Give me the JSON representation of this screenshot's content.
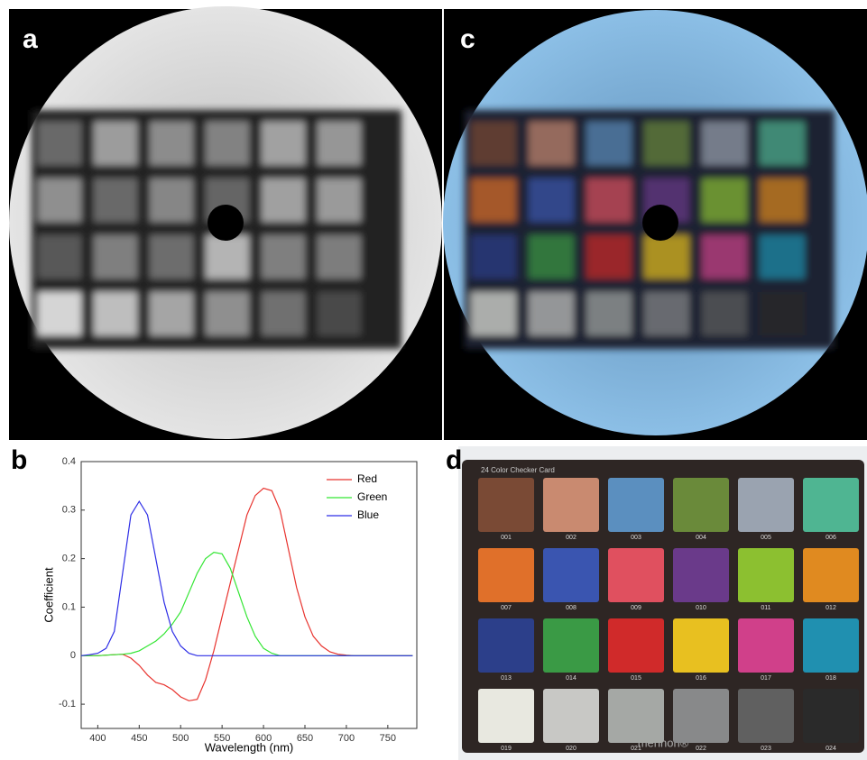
{
  "panels": {
    "a": "a",
    "b": "b",
    "c": "c",
    "d": "d"
  },
  "chart_data": {
    "type": "line",
    "xlabel": "Wavelength (nm)",
    "ylabel": "Coefficient",
    "x": [
      380,
      390,
      400,
      410,
      420,
      430,
      440,
      450,
      460,
      470,
      480,
      490,
      500,
      510,
      520,
      530,
      540,
      550,
      560,
      570,
      580,
      590,
      600,
      610,
      620,
      630,
      640,
      650,
      660,
      670,
      680,
      690,
      700,
      710,
      720,
      730,
      740,
      750,
      760,
      770,
      780
    ],
    "series": [
      {
        "name": "Red",
        "color": "#e8332e",
        "values": [
          0,
          0,
          0,
          0.001,
          0.002,
          0.003,
          -0.005,
          -0.02,
          -0.04,
          -0.055,
          -0.06,
          -0.07,
          -0.085,
          -0.093,
          -0.09,
          -0.05,
          0.01,
          0.08,
          0.15,
          0.22,
          0.29,
          0.33,
          0.345,
          0.34,
          0.3,
          0.22,
          0.14,
          0.08,
          0.04,
          0.02,
          0.008,
          0.003,
          0.001,
          0,
          0,
          0,
          0,
          0,
          0,
          0,
          0
        ]
      },
      {
        "name": "Green",
        "color": "#33e633",
        "values": [
          0,
          0,
          0,
          0.001,
          0.002,
          0.003,
          0.005,
          0.01,
          0.02,
          0.03,
          0.045,
          0.065,
          0.09,
          0.13,
          0.17,
          0.2,
          0.213,
          0.21,
          0.18,
          0.13,
          0.08,
          0.04,
          0.015,
          0.005,
          0,
          0,
          0,
          0,
          0,
          0,
          0,
          0,
          0,
          0,
          0,
          0,
          0,
          0,
          0,
          0,
          0
        ]
      },
      {
        "name": "Blue",
        "color": "#2e2ee6",
        "values": [
          0,
          0.002,
          0.005,
          0.015,
          0.05,
          0.17,
          0.29,
          0.318,
          0.29,
          0.2,
          0.11,
          0.05,
          0.02,
          0.005,
          0,
          0,
          0,
          0,
          0,
          0,
          0,
          0,
          0,
          0,
          0,
          0,
          0,
          0,
          0,
          0,
          0,
          0,
          0,
          0,
          0,
          0,
          0,
          0,
          0,
          0,
          0
        ]
      }
    ],
    "xlim": [
      380,
      785
    ],
    "ylim": [
      -0.15,
      0.4
    ],
    "xticks": [
      400,
      450,
      500,
      550,
      600,
      650,
      700,
      750
    ],
    "yticks": [
      -0.1,
      0,
      0.1,
      0.2,
      0.3,
      0.4
    ],
    "legend": "upper right"
  },
  "card": {
    "title": "24 Color Checker Card",
    "brand": "mennon®",
    "labels": [
      "001",
      "002",
      "003",
      "004",
      "005",
      "006",
      "007",
      "008",
      "009",
      "010",
      "011",
      "012",
      "013",
      "014",
      "015",
      "016",
      "017",
      "018",
      "019",
      "020",
      "021",
      "022",
      "023",
      "024"
    ]
  }
}
